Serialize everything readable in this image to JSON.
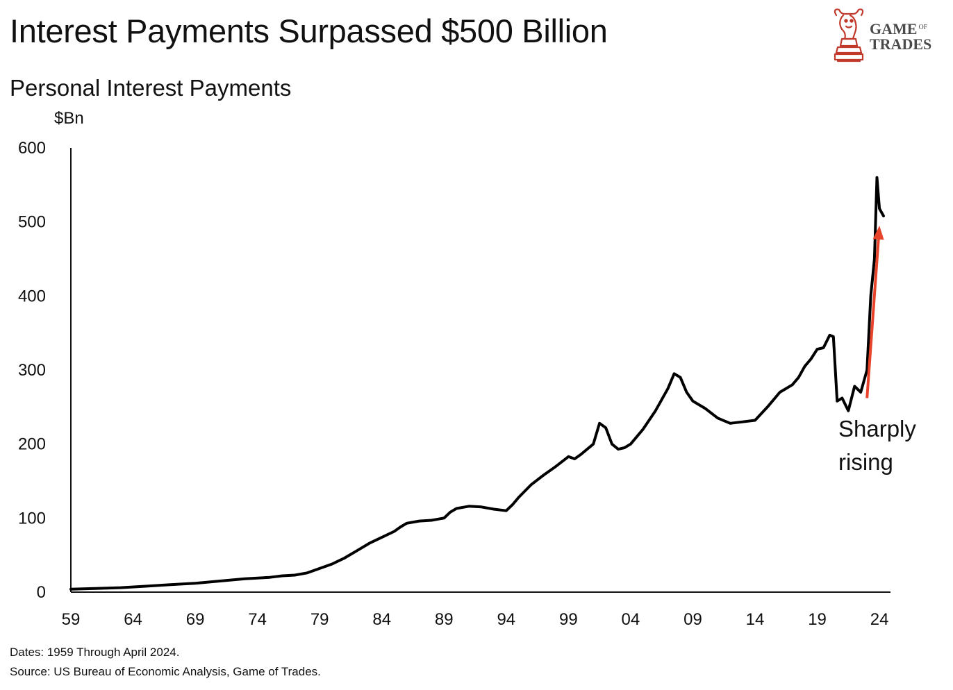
{
  "title": "Interest Payments Surpassed $500 Billion",
  "logo": {
    "word1": "GAME",
    "word_of": "OF",
    "word2": "TRADES",
    "brand_color": "#c0392b"
  },
  "footnotes": {
    "dates": "Dates: 1959 Through April 2024.",
    "source": "Source: US Bureau of Economic Analysis, Game of Trades."
  },
  "chart_data": {
    "type": "line",
    "title": "Personal Interest Payments",
    "ylabel": "$Bn",
    "xlabel": "",
    "ylim": [
      0,
      600
    ],
    "xlim": [
      1959,
      2024.33
    ],
    "yticks": [
      0,
      100,
      200,
      300,
      400,
      500,
      600
    ],
    "xticks": [
      {
        "value": 1959,
        "label": "59"
      },
      {
        "value": 1964,
        "label": "64"
      },
      {
        "value": 1969,
        "label": "69"
      },
      {
        "value": 1974,
        "label": "74"
      },
      {
        "value": 1979,
        "label": "79"
      },
      {
        "value": 1984,
        "label": "84"
      },
      {
        "value": 1989,
        "label": "89"
      },
      {
        "value": 1994,
        "label": "94"
      },
      {
        "value": 1999,
        "label": "99"
      },
      {
        "value": 2004,
        "label": "04"
      },
      {
        "value": 2009,
        "label": "09"
      },
      {
        "value": 2014,
        "label": "14"
      },
      {
        "value": 2019,
        "label": "19"
      },
      {
        "value": 2024,
        "label": "24"
      }
    ],
    "series": [
      {
        "color": "#000000",
        "x": [
          1959,
          1961,
          1963,
          1965,
          1967,
          1969,
          1971,
          1973,
          1975,
          1976,
          1977,
          1978,
          1979,
          1980,
          1980.5,
          1981,
          1982,
          1983,
          1984,
          1985,
          1985.5,
          1986,
          1987,
          1988,
          1989,
          1989.5,
          1990,
          1991,
          1992,
          1993,
          1994,
          1994.5,
          1995,
          1996,
          1997,
          1998,
          1999,
          1999.5,
          2000,
          2001,
          2001.5,
          2002,
          2002.5,
          2003,
          2003.5,
          2004,
          2005,
          2006,
          2007,
          2007.5,
          2008,
          2008.5,
          2009,
          2010,
          2011,
          2012,
          2013,
          2014,
          2015,
          2016,
          2017,
          2017.5,
          2018,
          2018.5,
          2019,
          2019.5,
          2020,
          2020.3,
          2020.6,
          2021,
          2021.5,
          2022,
          2022.5,
          2023,
          2023.3,
          2023.6,
          2023.8,
          2024,
          2024.33
        ],
        "values": [
          4,
          5,
          6,
          8,
          10,
          12,
          15,
          18,
          20,
          22,
          23,
          26,
          32,
          38,
          42,
          46,
          56,
          66,
          74,
          82,
          88,
          93,
          96,
          97,
          100,
          108,
          113,
          116,
          115,
          112,
          110,
          118,
          128,
          145,
          158,
          170,
          183,
          180,
          186,
          200,
          228,
          222,
          200,
          193,
          195,
          200,
          220,
          245,
          275,
          295,
          290,
          270,
          258,
          248,
          235,
          228,
          230,
          232,
          250,
          270,
          280,
          290,
          305,
          315,
          328,
          330,
          347,
          345,
          258,
          262,
          245,
          278,
          270,
          300,
          400,
          450,
          560,
          518,
          508
        ]
      }
    ],
    "annotation": {
      "line1": "Sharply",
      "line2": "rising",
      "arrow_color": "#e8432b",
      "arrow_from": {
        "x": 2023.0,
        "y": 262
      },
      "arrow_to": {
        "x": 2024.0,
        "y": 495
      }
    }
  }
}
